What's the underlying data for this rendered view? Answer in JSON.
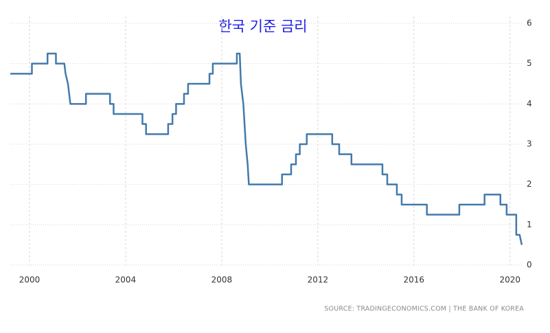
{
  "chart_data": {
    "type": "line",
    "title": "한국 기준 금리",
    "source": "SOURCE: TRADINGECONOMICS.COM | THE BANK OF KOREA",
    "color": "#4279ac",
    "grid": true,
    "xlim": [
      1999.2,
      2020.55
    ],
    "ylim": [
      0,
      6
    ],
    "xticks": [
      2000,
      2004,
      2008,
      2012,
      2016,
      2020
    ],
    "yticks": [
      0,
      1,
      2,
      3,
      4,
      5,
      6
    ],
    "x": [
      1999.2,
      2000.1,
      2000.1,
      2000.75,
      2000.75,
      2001.1,
      2001.1,
      2001.45,
      2001.5,
      2001.6,
      2001.7,
      2002.35,
      2002.35,
      2003.35,
      2003.35,
      2003.5,
      2003.5,
      2004.7,
      2004.7,
      2004.85,
      2004.85,
      2005.77,
      2005.77,
      2005.95,
      2005.95,
      2006.1,
      2006.1,
      2006.43,
      2006.43,
      2006.6,
      2006.6,
      2007.49,
      2007.49,
      2007.63,
      2007.63,
      2008.63,
      2008.63,
      2008.75,
      2008.8,
      2008.9,
      2009.0,
      2009.08,
      2009.13,
      2010.51,
      2010.51,
      2010.89,
      2010.89,
      2011.09,
      2011.09,
      2011.25,
      2011.25,
      2011.54,
      2011.54,
      2012.6,
      2012.6,
      2012.89,
      2012.89,
      2013.4,
      2013.4,
      2014.69,
      2014.69,
      2014.89,
      2014.89,
      2015.29,
      2015.29,
      2015.49,
      2015.49,
      2016.54,
      2016.54,
      2017.89,
      2017.89,
      2018.94,
      2018.94,
      2019.6,
      2019.6,
      2019.86,
      2019.86,
      2020.26,
      2020.26,
      2020.4,
      2020.49
    ],
    "values": [
      4.75,
      4.75,
      5,
      5,
      5.25,
      5.25,
      5,
      5,
      4.75,
      4.5,
      4,
      4,
      4.25,
      4.25,
      4,
      4,
      3.75,
      3.75,
      3.5,
      3.5,
      3.25,
      3.25,
      3.5,
      3.5,
      3.75,
      3.75,
      4,
      4,
      4.25,
      4.25,
      4.5,
      4.5,
      4.75,
      4.75,
      5,
      5,
      5.25,
      5.25,
      4.5,
      4,
      3,
      2.5,
      2,
      2,
      2.25,
      2.25,
      2.5,
      2.5,
      2.75,
      2.75,
      3,
      3,
      3.25,
      3.25,
      3,
      3,
      2.75,
      2.75,
      2.5,
      2.5,
      2.25,
      2.25,
      2,
      2,
      1.75,
      1.75,
      1.5,
      1.5,
      1.25,
      1.25,
      1.5,
      1.5,
      1.75,
      1.75,
      1.5,
      1.5,
      1.25,
      1.25,
      0.75,
      0.75,
      0.5
    ]
  }
}
